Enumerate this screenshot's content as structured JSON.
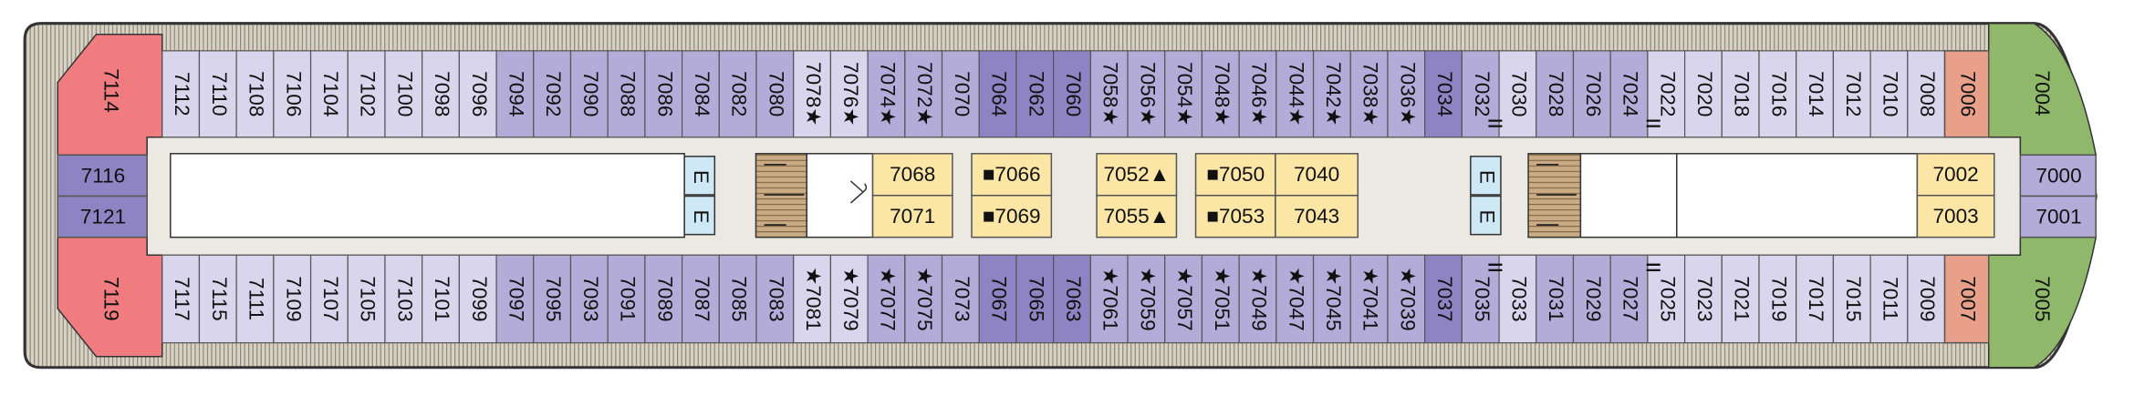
{
  "deck": {
    "top_row": [
      {
        "label": "7112",
        "color": "#d9d5ec"
      },
      {
        "label": "7110",
        "color": "#d9d5ec"
      },
      {
        "label": "7108",
        "color": "#d9d5ec"
      },
      {
        "label": "7106",
        "color": "#d9d5ec"
      },
      {
        "label": "7104",
        "color": "#d9d5ec"
      },
      {
        "label": "7102",
        "color": "#d9d5ec"
      },
      {
        "label": "7100",
        "color": "#d9d5ec"
      },
      {
        "label": "7098",
        "color": "#d9d5ec"
      },
      {
        "label": "7096",
        "color": "#d9d5ec"
      },
      {
        "label": "7094",
        "color": "#b3acd9"
      },
      {
        "label": "7092",
        "color": "#b3acd9"
      },
      {
        "label": "7090",
        "color": "#b3acd9"
      },
      {
        "label": "7088",
        "color": "#b3acd9"
      },
      {
        "label": "7086",
        "color": "#b3acd9"
      },
      {
        "label": "7084",
        "color": "#b3acd9"
      },
      {
        "label": "7082",
        "color": "#b3acd9"
      },
      {
        "label": "7080",
        "color": "#b3acd9"
      },
      {
        "label": "7078★",
        "color": "#d9d5ec"
      },
      {
        "label": "7076★",
        "color": "#d9d5ec"
      },
      {
        "label": "7074★",
        "color": "#b3acd9"
      },
      {
        "label": "7072★",
        "color": "#b3acd9"
      },
      {
        "label": "7070",
        "color": "#b3acd9"
      },
      {
        "label": "7064",
        "color": "#8e84c4"
      },
      {
        "label": "7062",
        "color": "#8e84c4"
      },
      {
        "label": "7060",
        "color": "#8e84c4"
      },
      {
        "label": "7058★",
        "color": "#b3acd9"
      },
      {
        "label": "7056★",
        "color": "#b3acd9"
      },
      {
        "label": "7054★",
        "color": "#b3acd9"
      },
      {
        "label": "7048★",
        "color": "#b3acd9"
      },
      {
        "label": "7046★",
        "color": "#b3acd9"
      },
      {
        "label": "7044★",
        "color": "#b3acd9"
      },
      {
        "label": "7042★",
        "color": "#b3acd9"
      },
      {
        "label": "7038★",
        "color": "#b3acd9"
      },
      {
        "label": "7036★",
        "color": "#b3acd9"
      },
      {
        "label": "7034",
        "color": "#8e84c4"
      },
      {
        "label": "7032",
        "color": "#b3acd9"
      },
      {
        "label": "7030",
        "color": "#d9d5ec"
      },
      {
        "label": "7028",
        "color": "#b3acd9"
      },
      {
        "label": "7026",
        "color": "#b3acd9"
      },
      {
        "label": "7024",
        "color": "#b3acd9"
      },
      {
        "label": "7022",
        "color": "#d9d5ec"
      },
      {
        "label": "7020",
        "color": "#d9d5ec"
      },
      {
        "label": "7018",
        "color": "#d9d5ec"
      },
      {
        "label": "7016",
        "color": "#d9d5ec"
      },
      {
        "label": "7014",
        "color": "#d9d5ec"
      },
      {
        "label": "7012",
        "color": "#d9d5ec"
      },
      {
        "label": "7010",
        "color": "#d9d5ec"
      },
      {
        "label": "7008",
        "color": "#d9d5ec"
      }
    ],
    "bottom_row": [
      {
        "label": "7117",
        "color": "#d9d5ec"
      },
      {
        "label": "7115",
        "color": "#d9d5ec"
      },
      {
        "label": "7111",
        "color": "#d9d5ec"
      },
      {
        "label": "7109",
        "color": "#d9d5ec"
      },
      {
        "label": "7107",
        "color": "#d9d5ec"
      },
      {
        "label": "7105",
        "color": "#d9d5ec"
      },
      {
        "label": "7103",
        "color": "#d9d5ec"
      },
      {
        "label": "7101",
        "color": "#d9d5ec"
      },
      {
        "label": "7099",
        "color": "#d9d5ec"
      },
      {
        "label": "7097",
        "color": "#b3acd9"
      },
      {
        "label": "7095",
        "color": "#b3acd9"
      },
      {
        "label": "7093",
        "color": "#b3acd9"
      },
      {
        "label": "7091",
        "color": "#b3acd9"
      },
      {
        "label": "7089",
        "color": "#b3acd9"
      },
      {
        "label": "7087",
        "color": "#b3acd9"
      },
      {
        "label": "7085",
        "color": "#b3acd9"
      },
      {
        "label": "7083",
        "color": "#b3acd9"
      },
      {
        "label": "★7081",
        "color": "#d9d5ec"
      },
      {
        "label": "★7079",
        "color": "#d9d5ec"
      },
      {
        "label": "★7077",
        "color": "#b3acd9"
      },
      {
        "label": "★7075",
        "color": "#b3acd9"
      },
      {
        "label": "7073",
        "color": "#b3acd9"
      },
      {
        "label": "7067",
        "color": "#8e84c4"
      },
      {
        "label": "7065",
        "color": "#8e84c4"
      },
      {
        "label": "7063",
        "color": "#8e84c4"
      },
      {
        "label": "★7061",
        "color": "#b3acd9"
      },
      {
        "label": "★7059",
        "color": "#b3acd9"
      },
      {
        "label": "★7057",
        "color": "#b3acd9"
      },
      {
        "label": "★7051",
        "color": "#b3acd9"
      },
      {
        "label": "★7049",
        "color": "#b3acd9"
      },
      {
        "label": "★7047",
        "color": "#b3acd9"
      },
      {
        "label": "★7045",
        "color": "#b3acd9"
      },
      {
        "label": "★7041",
        "color": "#b3acd9"
      },
      {
        "label": "★7039",
        "color": "#b3acd9"
      },
      {
        "label": "7037",
        "color": "#8e84c4"
      },
      {
        "label": "7035",
        "color": "#b3acd9"
      },
      {
        "label": "7033",
        "color": "#d9d5ec"
      },
      {
        "label": "7031",
        "color": "#b3acd9"
      },
      {
        "label": "7029",
        "color": "#b3acd9"
      },
      {
        "label": "7027",
        "color": "#b3acd9"
      },
      {
        "label": "7025",
        "color": "#d9d5ec"
      },
      {
        "label": "7023",
        "color": "#d9d5ec"
      },
      {
        "label": "7021",
        "color": "#d9d5ec"
      },
      {
        "label": "7019",
        "color": "#d9d5ec"
      },
      {
        "label": "7017",
        "color": "#d9d5ec"
      },
      {
        "label": "7015",
        "color": "#d9d5ec"
      },
      {
        "label": "7011",
        "color": "#d9d5ec"
      },
      {
        "label": "7009",
        "color": "#d9d5ec"
      }
    ],
    "stern": {
      "top": "7114",
      "middle": [
        "7116",
        "7121"
      ],
      "bottom": "7119"
    },
    "forward": {
      "top": [
        "7006",
        "7004"
      ],
      "middle": [
        "7000",
        "7001"
      ],
      "bottom": [
        "7007",
        "7005"
      ]
    },
    "center_rooms": [
      [
        "7068",
        "7071"
      ],
      [
        "■7066",
        "■7069"
      ],
      [
        "7052▲",
        "7055▲"
      ],
      [
        "■7050",
        "■7053"
      ],
      [
        "7040",
        "7043"
      ],
      [
        "7002",
        "7003"
      ]
    ],
    "elevators": [
      [
        "E",
        "E"
      ],
      [
        "E",
        "E"
      ]
    ]
  }
}
